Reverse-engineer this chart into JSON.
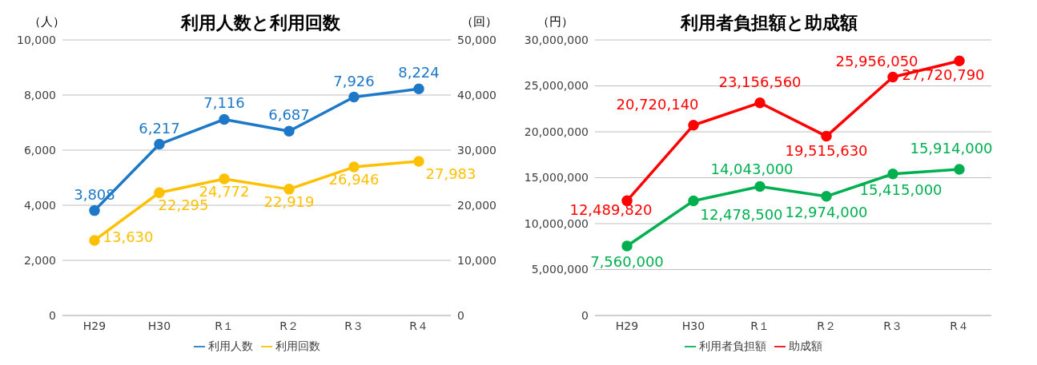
{
  "chart_data": [
    {
      "type": "line",
      "title": "利用人数と利用回数",
      "ylabel": "（人）",
      "y2label": "（回）",
      "categories": [
        "H29",
        "H30",
        "R１",
        "R２",
        "R３",
        "R４"
      ],
      "series": [
        {
          "name": "利用人数",
          "color": "#1e78c8",
          "values": [
            3808,
            6217,
            7116,
            6687,
            7926,
            8224
          ],
          "value_labels": [
            "3,808",
            "6,217",
            "7,116",
            "6,687",
            "7,926",
            "8,224"
          ]
        },
        {
          "name": "利用回数",
          "color": "#ffc000",
          "axis": "y2",
          "values": [
            13630,
            22295,
            24772,
            22919,
            26946,
            27983
          ],
          "value_labels": [
            "13,630",
            "22,295",
            "24,772",
            "22,919",
            "26,946",
            "27,983"
          ]
        }
      ],
      "ylim": [
        0,
        10000
      ],
      "yticks": [
        0,
        {
          "value": 2000,
          "label": "2,000"
        },
        {
          "value": 4000,
          "label": "4,000"
        },
        {
          "value": 6000,
          "label": "6,000"
        },
        {
          "value": 8000,
          "label": "8,000"
        },
        {
          "value": 10000,
          "label": "10,000"
        }
      ],
      "y2lim": [
        0,
        50000
      ],
      "y2ticks": [
        0,
        {
          "value": 10000,
          "label": "10,000"
        },
        {
          "value": 20000,
          "label": "20,000"
        },
        {
          "value": 30000,
          "label": "30,000"
        },
        {
          "value": 40000,
          "label": "40,000"
        },
        {
          "value": 50000,
          "label": "50,000"
        }
      ],
      "grid": "y",
      "legend": "bottom",
      "marker": "circle"
    },
    {
      "type": "line",
      "title": "利用者負担額と助成額",
      "ylabel": "（円）",
      "categories": [
        "H29",
        "H30",
        "R１",
        "R２",
        "R３",
        "R４"
      ],
      "series": [
        {
          "name": "利用者負担額",
          "color": "#00b050",
          "values": [
            7560000,
            12478500,
            14043000,
            12974000,
            15415000,
            15914000
          ],
          "value_labels": [
            "7,560,000",
            "12,478,500",
            "14,043,000",
            "12,974,000",
            "15,415,000",
            "15,914,000"
          ]
        },
        {
          "name": "助成額",
          "color": "#ff0000",
          "values": [
            12489820,
            20720140,
            23156560,
            19515630,
            25956050,
            27720790
          ],
          "value_labels": [
            "12,489,820",
            "20,720,140",
            "23,156,560",
            "19,515,630",
            "25,956,050",
            "27,720,790"
          ]
        }
      ],
      "ylim": [
        0,
        30000000
      ],
      "yticks": [
        0,
        {
          "value": 5000000,
          "label": "5,000,000"
        },
        {
          "value": 10000000,
          "label": "10,000,000"
        },
        {
          "value": 15000000,
          "label": "15,000,000"
        },
        {
          "value": 20000000,
          "label": "20,000,000"
        },
        {
          "value": 25000000,
          "label": "25,000,000"
        },
        {
          "value": 30000000,
          "label": "30,000,000"
        }
      ],
      "grid": "y",
      "legend": "bottom",
      "marker": "circle"
    }
  ]
}
